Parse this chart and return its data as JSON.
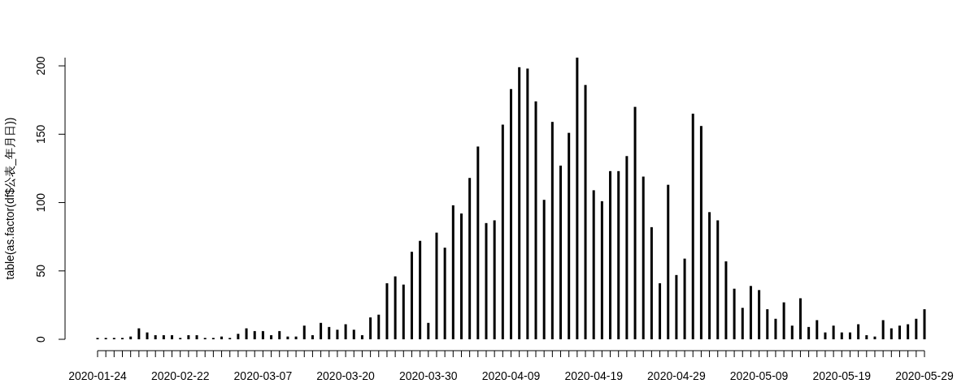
{
  "chart_data": {
    "type": "bar",
    "ylabel": "table(as.factor(df$公表_年月日))",
    "color": "#000000",
    "grid": false,
    "ylim": [
      0,
      206
    ],
    "yticks": [
      0,
      50,
      100,
      150,
      200
    ],
    "categories": [
      "2020-01-24",
      null,
      null,
      null,
      null,
      null,
      null,
      null,
      null,
      null,
      "2020-02-22",
      null,
      null,
      null,
      null,
      null,
      null,
      null,
      null,
      null,
      "2020-03-07",
      null,
      null,
      null,
      null,
      null,
      null,
      null,
      null,
      null,
      "2020-03-20",
      null,
      null,
      null,
      null,
      null,
      null,
      null,
      null,
      null,
      "2020-03-30",
      null,
      null,
      null,
      null,
      null,
      null,
      null,
      null,
      null,
      "2020-04-09",
      null,
      null,
      null,
      null,
      null,
      null,
      null,
      null,
      null,
      "2020-04-19",
      null,
      null,
      null,
      null,
      null,
      null,
      null,
      null,
      null,
      "2020-04-29",
      null,
      null,
      null,
      null,
      null,
      null,
      null,
      null,
      null,
      "2020-05-09",
      null,
      null,
      null,
      null,
      null,
      null,
      null,
      null,
      null,
      "2020-05-19",
      null,
      null,
      null,
      null,
      null,
      null,
      null,
      null,
      null,
      "2020-05-29"
    ],
    "values": [
      1,
      1,
      1,
      1,
      2,
      8,
      5,
      3,
      3,
      3,
      1,
      3,
      3,
      1,
      1,
      2,
      1,
      4,
      8,
      6,
      6,
      3,
      6,
      2,
      2,
      10,
      3,
      12,
      9,
      7,
      11,
      7,
      3,
      16,
      18,
      41,
      46,
      40,
      64,
      72,
      12,
      78,
      67,
      98,
      92,
      118,
      141,
      85,
      87,
      157,
      183,
      199,
      198,
      174,
      102,
      159,
      127,
      151,
      206,
      186,
      109,
      101,
      123,
      123,
      134,
      170,
      119,
      82,
      41,
      113,
      47,
      59,
      165,
      156,
      93,
      87,
      57,
      37,
      23,
      39,
      36,
      22,
      15,
      27,
      10,
      30,
      9,
      14,
      5,
      10,
      5,
      5,
      11,
      3,
      2,
      14,
      8,
      10,
      11,
      15,
      22
    ]
  }
}
